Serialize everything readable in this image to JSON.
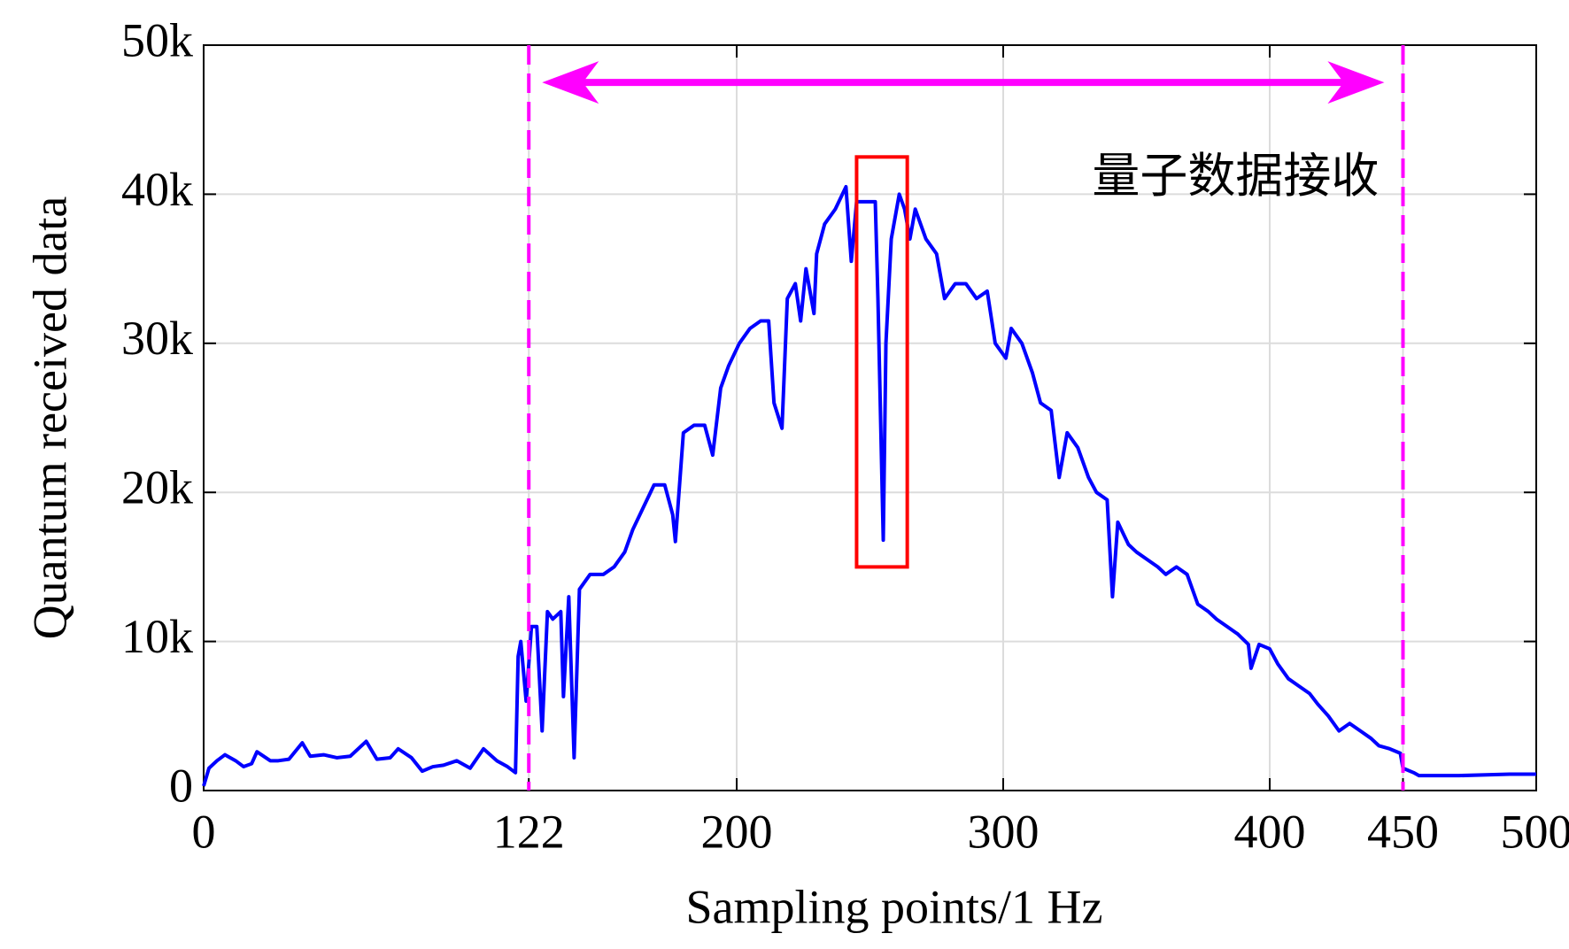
{
  "chart_data": {
    "type": "line",
    "xlabel": "Sampling points/1 Hz",
    "ylabel": "Quantum received data",
    "annotation": "量子数据接收",
    "color": "#0000ff",
    "x": [
      0,
      2,
      5,
      8,
      12,
      15,
      18,
      20,
      25,
      28,
      32,
      37,
      40,
      45,
      50,
      55,
      61,
      65,
      70,
      73,
      78,
      82,
      86,
      90,
      95,
      100,
      105,
      110,
      114,
      117,
      118,
      119,
      121,
      123,
      125,
      127,
      129,
      131,
      134,
      135,
      137,
      139,
      141,
      145,
      150,
      154,
      158,
      161,
      165,
      169,
      173,
      176,
      177,
      180,
      184,
      188,
      191,
      194,
      197,
      201,
      205,
      209,
      212,
      214,
      217,
      219,
      222,
      224,
      226,
      229,
      230,
      233,
      237,
      241,
      243,
      245,
      249,
      252,
      253,
      255,
      256,
      258,
      261,
      263,
      265,
      267,
      271,
      275,
      278,
      282,
      286,
      290,
      294,
      297,
      301,
      303,
      307,
      311,
      314,
      318,
      321,
      324,
      328,
      332,
      335,
      339,
      341,
      343,
      347,
      350,
      354,
      358,
      361,
      365,
      369,
      373,
      377,
      380,
      384,
      388,
      392,
      393,
      396,
      400,
      403,
      407,
      411,
      415,
      418,
      422,
      426,
      430,
      434,
      438,
      441,
      445,
      449,
      450,
      454,
      456,
      471,
      490,
      500
    ],
    "values": [
      300,
      1500,
      2000,
      2400,
      2000,
      1600,
      1800,
      2600,
      2000,
      2000,
      2100,
      3200,
      2300,
      2400,
      2200,
      2300,
      3300,
      2100,
      2200,
      2800,
      2200,
      1300,
      1600,
      1700,
      2000,
      1500,
      2800,
      2000,
      1600,
      1200,
      9000,
      10000,
      6000,
      11000,
      11000,
      4000,
      12000,
      11500,
      12000,
      6300,
      13000,
      2200,
      13500,
      14500,
      14500,
      15000,
      16000,
      17500,
      19000,
      20500,
      20500,
      18500,
      16700,
      24000,
      24500,
      24500,
      22500,
      27000,
      28500,
      30000,
      31000,
      31500,
      31500,
      26000,
      24300,
      33000,
      34000,
      31500,
      35000,
      32000,
      36000,
      38000,
      39000,
      40500,
      35500,
      39500,
      39500,
      39500,
      33000,
      16800,
      30000,
      37000,
      40000,
      39000,
      37000,
      39000,
      37000,
      36000,
      33000,
      34000,
      34000,
      33000,
      33500,
      30000,
      29000,
      31000,
      30000,
      28000,
      26000,
      25500,
      21000,
      24000,
      23000,
      21000,
      20000,
      19500,
      13000,
      18000,
      16500,
      16000,
      15500,
      15000,
      14500,
      15000,
      14500,
      12500,
      12000,
      11500,
      11000,
      10500,
      9800,
      8200,
      9800,
      9500,
      8500,
      7500,
      7000,
      6500,
      5800,
      5000,
      4000,
      4500,
      4000,
      3500,
      3000,
      2800,
      2500,
      1500,
      1200,
      1000,
      1000,
      1100,
      1100
    ],
    "xlim": [
      0,
      500
    ],
    "xticks": [
      0,
      122,
      200,
      300,
      400,
      450,
      500
    ],
    "ylim": [
      0,
      50000
    ],
    "yticks": [
      0,
      {
        "value": 10000,
        "label": "10k"
      },
      {
        "value": 20000,
        "label": "20k"
      },
      {
        "value": 30000,
        "label": "30k"
      },
      {
        "value": 40000,
        "label": "40k"
      },
      {
        "value": 50000,
        "label": "50k"
      }
    ],
    "grid": true,
    "vlines": [
      122,
      450
    ],
    "vline_color": "#ff00ff",
    "arrow": {
      "x": [
        127,
        443
      ],
      "y": 47500,
      "color": "#ff00ff"
    },
    "highlight": {
      "x": [
        245,
        264
      ],
      "y": [
        15000,
        42500
      ],
      "color": "#ff0000"
    }
  }
}
